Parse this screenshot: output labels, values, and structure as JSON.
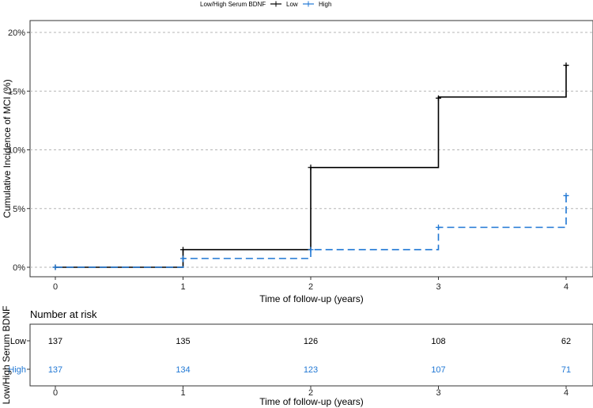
{
  "chart_data": {
    "type": "line",
    "subtype": "kaplan-meier-cumulative-incidence",
    "legend": {
      "title": "Low/High Serum BDNF",
      "position": "top",
      "entries": [
        {
          "name": "Low",
          "color": "#000000",
          "linestyle": "solid"
        },
        {
          "name": "High",
          "color": "#1f77d4",
          "linestyle": "dashed"
        }
      ]
    },
    "xlabel": "Time of follow-up (years)",
    "ylabel": "Cumulative Incidence of MCI (%)",
    "xlim": [
      0,
      4
    ],
    "ylim": [
      0,
      20
    ],
    "x_ticks": [
      0,
      1,
      2,
      3,
      4
    ],
    "y_ticks": [
      0,
      5,
      10,
      15,
      20
    ],
    "y_tick_labels": [
      "0%",
      "5%",
      "10%",
      "15%",
      "20%"
    ],
    "grid": "horizontal dashed",
    "series": [
      {
        "name": "Low",
        "color": "#000000",
        "steps": [
          [
            0,
            0
          ],
          [
            1,
            1.5
          ],
          [
            2,
            8.5
          ],
          [
            3,
            14.5
          ],
          [
            4,
            17.2
          ]
        ],
        "censor_marks": [
          [
            0,
            0
          ],
          [
            1,
            1.5
          ],
          [
            2,
            8.5
          ],
          [
            3,
            14.4
          ],
          [
            4,
            17.2
          ]
        ]
      },
      {
        "name": "High",
        "color": "#1f77d4",
        "steps": [
          [
            0,
            0
          ],
          [
            1,
            0.75
          ],
          [
            2,
            1.5
          ],
          [
            3,
            3.4
          ],
          [
            4,
            6.1
          ]
        ],
        "censor_marks": [
          [
            0,
            0
          ],
          [
            1,
            0.75
          ],
          [
            2,
            1.5
          ],
          [
            3,
            3.4
          ],
          [
            4,
            6.1
          ]
        ]
      }
    ],
    "risk_table": {
      "title": "Number at risk",
      "ylabel": "Low/High Serum BDNF",
      "xlabel": "Time of follow-up (years)",
      "times": [
        0,
        1,
        2,
        3,
        4
      ],
      "rows": [
        {
          "label": "Low",
          "color": "#000000",
          "values": [
            137,
            135,
            126,
            108,
            62
          ]
        },
        {
          "label": "High",
          "color": "#1f77d4",
          "values": [
            137,
            134,
            123,
            107,
            71
          ]
        }
      ]
    }
  }
}
